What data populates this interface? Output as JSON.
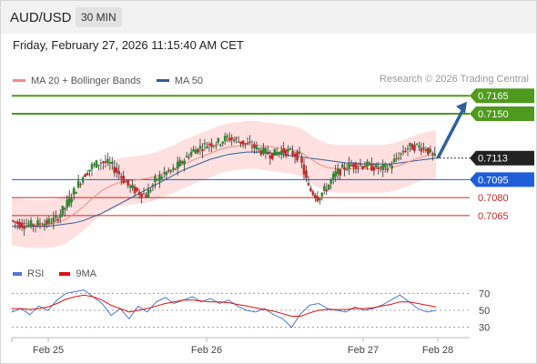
{
  "header": {
    "symbol": "AUD/USD",
    "timeframe": "30 MIN"
  },
  "datetime": "Friday, February 27, 2026 11:15:40 AM CET",
  "legend": [
    {
      "label": "MA 20 + Bollinger Bands",
      "color": "#f08c84"
    },
    {
      "label": "MA 50",
      "color": "#355e9a"
    }
  ],
  "credit": "Research © 2026 Trading Central",
  "chart_data": {
    "type": "line",
    "title": "",
    "price_range": [
      0.703,
      0.7172
    ],
    "xaxis": {
      "labels": [
        "Feb 25",
        "Feb 26",
        "Feb 27",
        "Feb 28"
      ]
    },
    "levels": [
      {
        "label": "0.7165",
        "value": 0.7165,
        "color": "#4f9a1e",
        "kind": "resistance"
      },
      {
        "label": "0.7150",
        "value": 0.715,
        "color": "#4f9a1e",
        "kind": "resistance"
      },
      {
        "label": "0.7113",
        "value": 0.7113,
        "color": "#222222",
        "kind": "current"
      },
      {
        "label": "0.7095",
        "value": 0.7095,
        "color": "#1f5ed8",
        "kind": "pivot"
      },
      {
        "label": "0.7080",
        "value": 0.708,
        "color": "#c62828",
        "kind": "support"
      },
      {
        "label": "0.7065",
        "value": 0.7065,
        "color": "#c62828",
        "kind": "support"
      }
    ],
    "arrow": {
      "from": 0.7113,
      "to": 0.716,
      "color": "#2f5f9e"
    },
    "close_path": [
      0.7061,
      0.7058,
      0.7057,
      0.7058,
      0.7059,
      0.7062,
      0.7072,
      0.7085,
      0.7098,
      0.7106,
      0.711,
      0.7108,
      0.71,
      0.709,
      0.7085,
      0.7082,
      0.7094,
      0.71,
      0.7103,
      0.711,
      0.7118,
      0.7122,
      0.7125,
      0.7126,
      0.713,
      0.7128,
      0.7125,
      0.7122,
      0.7118,
      0.7116,
      0.7119,
      0.7118,
      0.7114,
      0.7088,
      0.708,
      0.7088,
      0.71,
      0.7105,
      0.7108,
      0.7107,
      0.7106,
      0.7104,
      0.7106,
      0.7115,
      0.7122,
      0.7123,
      0.7121,
      0.7113
    ],
    "ma20_path": [
      0.706,
      0.7059,
      0.7058,
      0.7058,
      0.7058,
      0.7059,
      0.7062,
      0.7067,
      0.7073,
      0.708,
      0.7086,
      0.709,
      0.7093,
      0.7094,
      0.7095,
      0.7096,
      0.7098,
      0.7101,
      0.7104,
      0.7108,
      0.7111,
      0.7114,
      0.7117,
      0.712,
      0.7122,
      0.7123,
      0.7124,
      0.7124,
      0.7123,
      0.7122,
      0.7121,
      0.712,
      0.7118,
      0.7113,
      0.7108,
      0.7105,
      0.7104,
      0.7104,
      0.7104,
      0.7104,
      0.7104,
      0.7104,
      0.7105,
      0.7107,
      0.711,
      0.7113,
      0.7115,
      0.7116
    ],
    "ma50_path": [
      0.7056,
      0.7056,
      0.7056,
      0.7056,
      0.7056,
      0.7057,
      0.7058,
      0.7059,
      0.7061,
      0.7064,
      0.7067,
      0.7071,
      0.7075,
      0.7079,
      0.7083,
      0.7087,
      0.7091,
      0.7095,
      0.7099,
      0.7103,
      0.7106,
      0.7109,
      0.7112,
      0.7114,
      0.7116,
      0.7117,
      0.7118,
      0.7118,
      0.7118,
      0.7117,
      0.7116,
      0.7115,
      0.7114,
      0.7113,
      0.7112,
      0.7111,
      0.711,
      0.7109,
      0.7109,
      0.7108,
      0.7108,
      0.7108,
      0.7108,
      0.7109,
      0.711,
      0.7111,
      0.7112,
      0.7113
    ],
    "band_width": 0.002,
    "rsi": {
      "legend": [
        {
          "label": "RSI",
          "color": "#4f78d0"
        },
        {
          "label": "9MA",
          "color": "#e01010"
        }
      ],
      "ticks": [
        "70",
        "50",
        "30"
      ],
      "range": [
        20,
        80
      ],
      "rsi_path": [
        48,
        52,
        45,
        55,
        50,
        62,
        70,
        72,
        74,
        66,
        58,
        44,
        52,
        40,
        55,
        48,
        60,
        65,
        58,
        62,
        66,
        60,
        64,
        58,
        62,
        55,
        50,
        48,
        52,
        45,
        40,
        30,
        46,
        56,
        58,
        52,
        50,
        48,
        54,
        50,
        52,
        56,
        62,
        68,
        60,
        52,
        48,
        50
      ],
      "ma_path": [
        52,
        52,
        51,
        52,
        54,
        58,
        63,
        66,
        68,
        66,
        62,
        56,
        52,
        48,
        50,
        52,
        55,
        58,
        60,
        62,
        62,
        61,
        60,
        60,
        59,
        57,
        55,
        53,
        51,
        49,
        46,
        43,
        43,
        47,
        50,
        51,
        51,
        51,
        52,
        52,
        53,
        55,
        57,
        60,
        60,
        58,
        56,
        54
      ]
    }
  }
}
